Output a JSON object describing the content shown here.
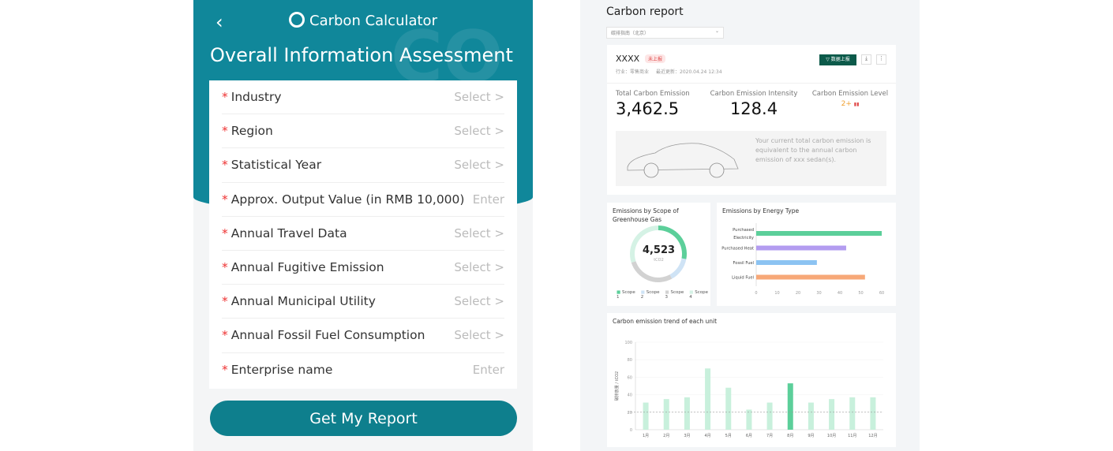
{
  "left": {
    "app_title": "Carbon Calculator",
    "page_title": "Overall Information Assessment",
    "watermark": "CO",
    "fields": [
      {
        "label": "Industry",
        "action": "Select >"
      },
      {
        "label": "Region",
        "action": "Select >"
      },
      {
        "label": "Statistical Year",
        "action": "Select >"
      },
      {
        "label": "Approx. Output Value (in RMB 10,000)",
        "action": "Enter"
      },
      {
        "label": "Annual Travel Data",
        "action": "Select >"
      },
      {
        "label": "Annual Fugitive Emission",
        "action": "Select >"
      },
      {
        "label": "Annual Municipal Utility",
        "action": "Select >"
      },
      {
        "label": "Annual Fossil Fuel Consumption",
        "action": "Select >"
      },
      {
        "label": "Enterprise name",
        "action": "Enter"
      }
    ],
    "required_mark": "*",
    "submit_label": "Get My Report",
    "colors": {
      "primary": "#10879a",
      "button": "#0e7f8d"
    }
  },
  "right": {
    "title": "Carbon report",
    "dropdown_value": "碳排指南（北京）",
    "company": "XXXX",
    "status_tag": "未上报",
    "meta_industry": "行业：零售商业",
    "meta_updated": "最近更新：2020.04.24 12:34",
    "report_button": "数据上报",
    "kpis": [
      {
        "label": "Total Carbon Emission",
        "value": "3,462.5"
      },
      {
        "label": "Carbon Emission Intensity",
        "value": "128.4"
      },
      {
        "label": "Carbon Emission Level",
        "value": "2+"
      }
    ],
    "equivalence_text": "Your current total carbon emission is equivalent to the annual carbon emission of xxx sedan(s).",
    "colors": {
      "accent": "#0c5a4a",
      "green": "#5ccf9a",
      "light_green": "#c8f0dc"
    }
  },
  "chart_data": [
    {
      "type": "pie",
      "title": "Emissions by Scope of Greenhouse Gas",
      "center_value": "4,523",
      "center_unit": "tCO2",
      "series": [
        {
          "name": "Scope 1",
          "value": 28,
          "color": "#5ccf9a"
        },
        {
          "name": "Scope 2",
          "value": 14,
          "color": "#cfe3f5"
        },
        {
          "name": "Scope 3",
          "value": 28,
          "color": "#d2d2d2"
        },
        {
          "name": "Scope 4",
          "value": 30,
          "color": "#d5f2e5"
        }
      ]
    },
    {
      "type": "bar",
      "orientation": "horizontal",
      "title": "Emissions by Energy Type",
      "categories": [
        "Purchased Electricity",
        "Purchased Heat",
        "Fossil Fuel",
        "Liquid Fuel"
      ],
      "values": [
        60,
        43,
        29,
        52
      ],
      "colors": [
        "#5ccf9a",
        "#b39cf0",
        "#8cc3f2",
        "#f7a878"
      ],
      "xlim": [
        0,
        60
      ],
      "xticks": [
        0,
        10,
        20,
        30,
        40,
        50,
        60
      ]
    },
    {
      "type": "bar",
      "title": "Carbon emission trend of each unit",
      "ylabel": "碳排放量 / tCO2",
      "categories": [
        "1月",
        "2月",
        "3月",
        "4月",
        "5月",
        "6月",
        "7月",
        "8月",
        "9月",
        "10月",
        "11月",
        "12月"
      ],
      "values": [
        31,
        35,
        37,
        70,
        48,
        23,
        31,
        53,
        31,
        35,
        37,
        37
      ],
      "highlight": "8月",
      "ylim": [
        0,
        100
      ],
      "yticks": [
        0,
        20,
        40,
        60,
        80,
        100
      ],
      "reference_line": 20
    }
  ]
}
